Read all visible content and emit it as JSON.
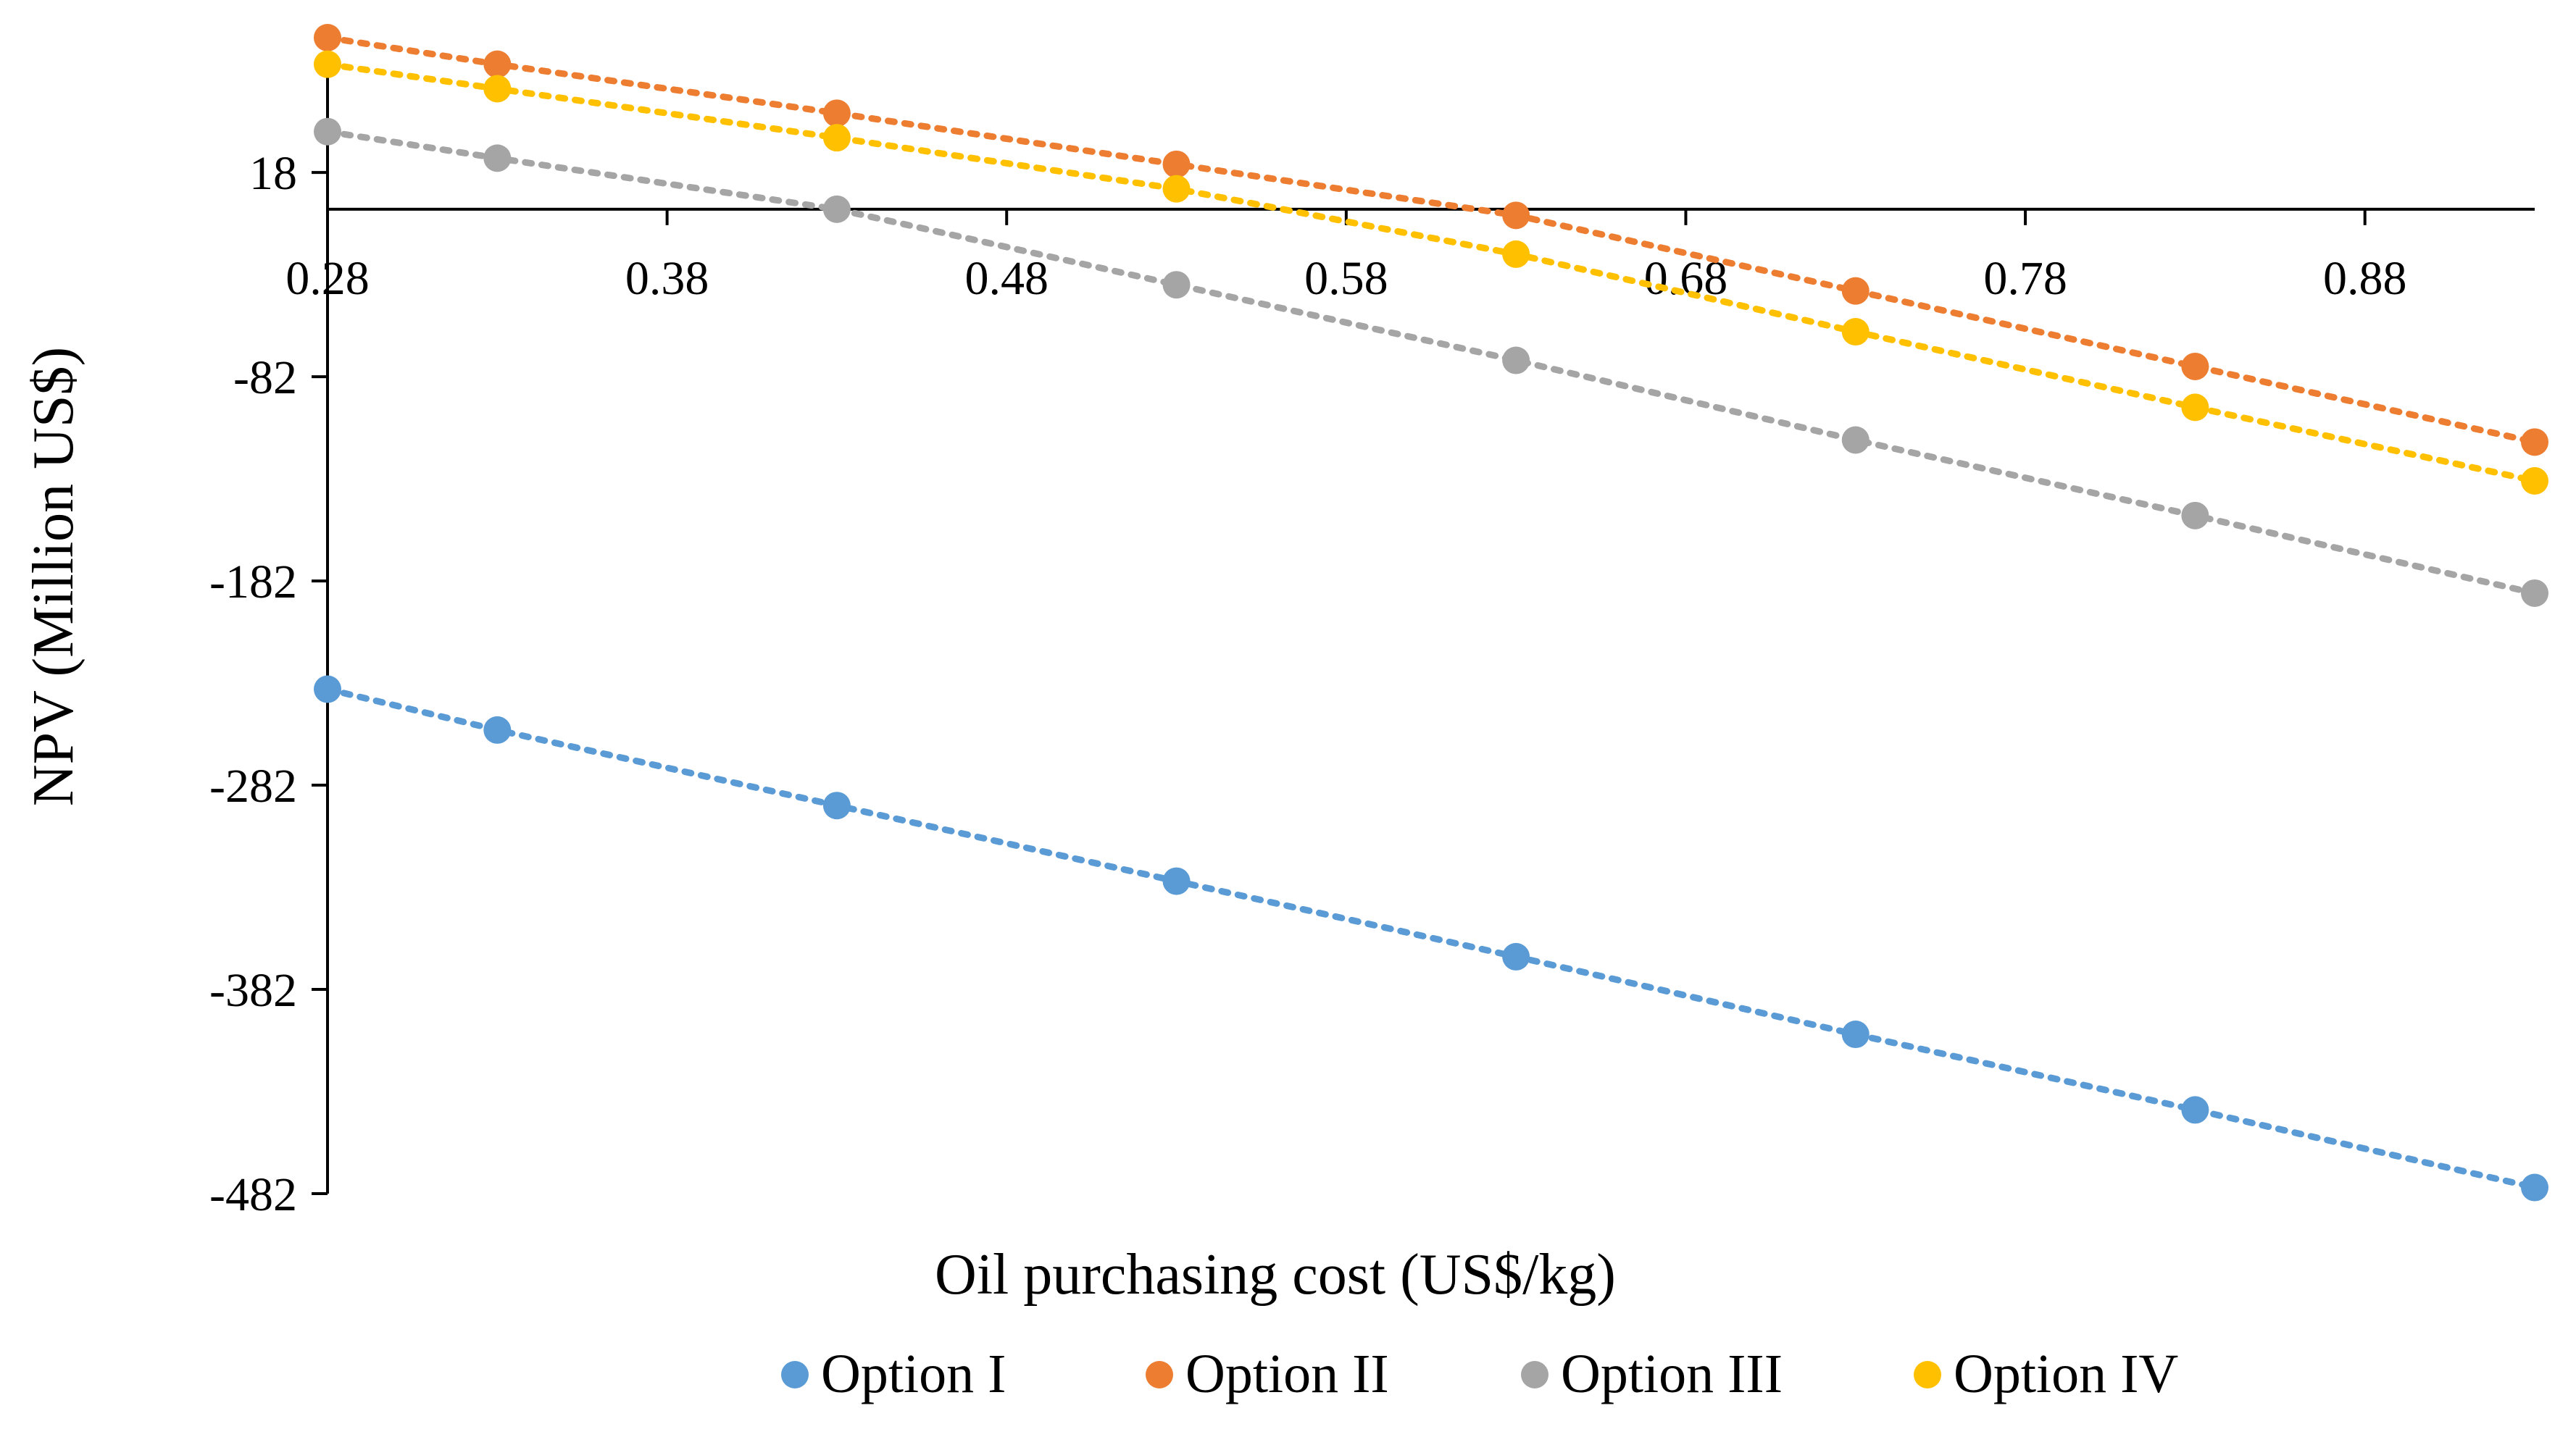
{
  "chart_data": {
    "type": "line",
    "title": "",
    "xlabel": "Oil purchasing cost (US$/kg)",
    "ylabel": "NPV (Million  US$)",
    "x_ticks": [
      "0.28",
      "0.38",
      "0.48",
      "0.58",
      "0.68",
      "0.78",
      "0.88"
    ],
    "x_tick_values": [
      0.28,
      0.38,
      0.48,
      0.58,
      0.68,
      0.78,
      0.88
    ],
    "y_ticks": [
      "18",
      "-82",
      "-182",
      "-282",
      "-382",
      "-482"
    ],
    "y_tick_values": [
      18,
      -82,
      -182,
      -282,
      -382,
      -482
    ],
    "xlim": [
      0.28,
      0.93
    ],
    "ylim": [
      -482,
      84
    ],
    "x_axis_crosses_y_at": 0,
    "grid": false,
    "legend_position": "bottom",
    "line_style": "dotted",
    "x": [
      0.28,
      0.33,
      0.43,
      0.53,
      0.63,
      0.73,
      0.83,
      0.93
    ],
    "series": [
      {
        "name": "Option I",
        "color": "#5B9BD5",
        "values": [
          -235,
          -255,
          -292,
          -329,
          -366,
          -404,
          -441,
          -479
        ]
      },
      {
        "name": "Option II",
        "color": "#ED7D31",
        "values": [
          84,
          71,
          47,
          22,
          -3,
          -40,
          -77,
          -114
        ]
      },
      {
        "name": "Option III",
        "color": "#A5A5A5",
        "values": [
          38,
          25,
          0,
          -37,
          -74,
          -113,
          -150,
          -188
        ]
      },
      {
        "name": "Option IV",
        "color": "#FFC000",
        "values": [
          71,
          59,
          35,
          10,
          -22,
          -60,
          -97,
          -133
        ]
      }
    ]
  }
}
